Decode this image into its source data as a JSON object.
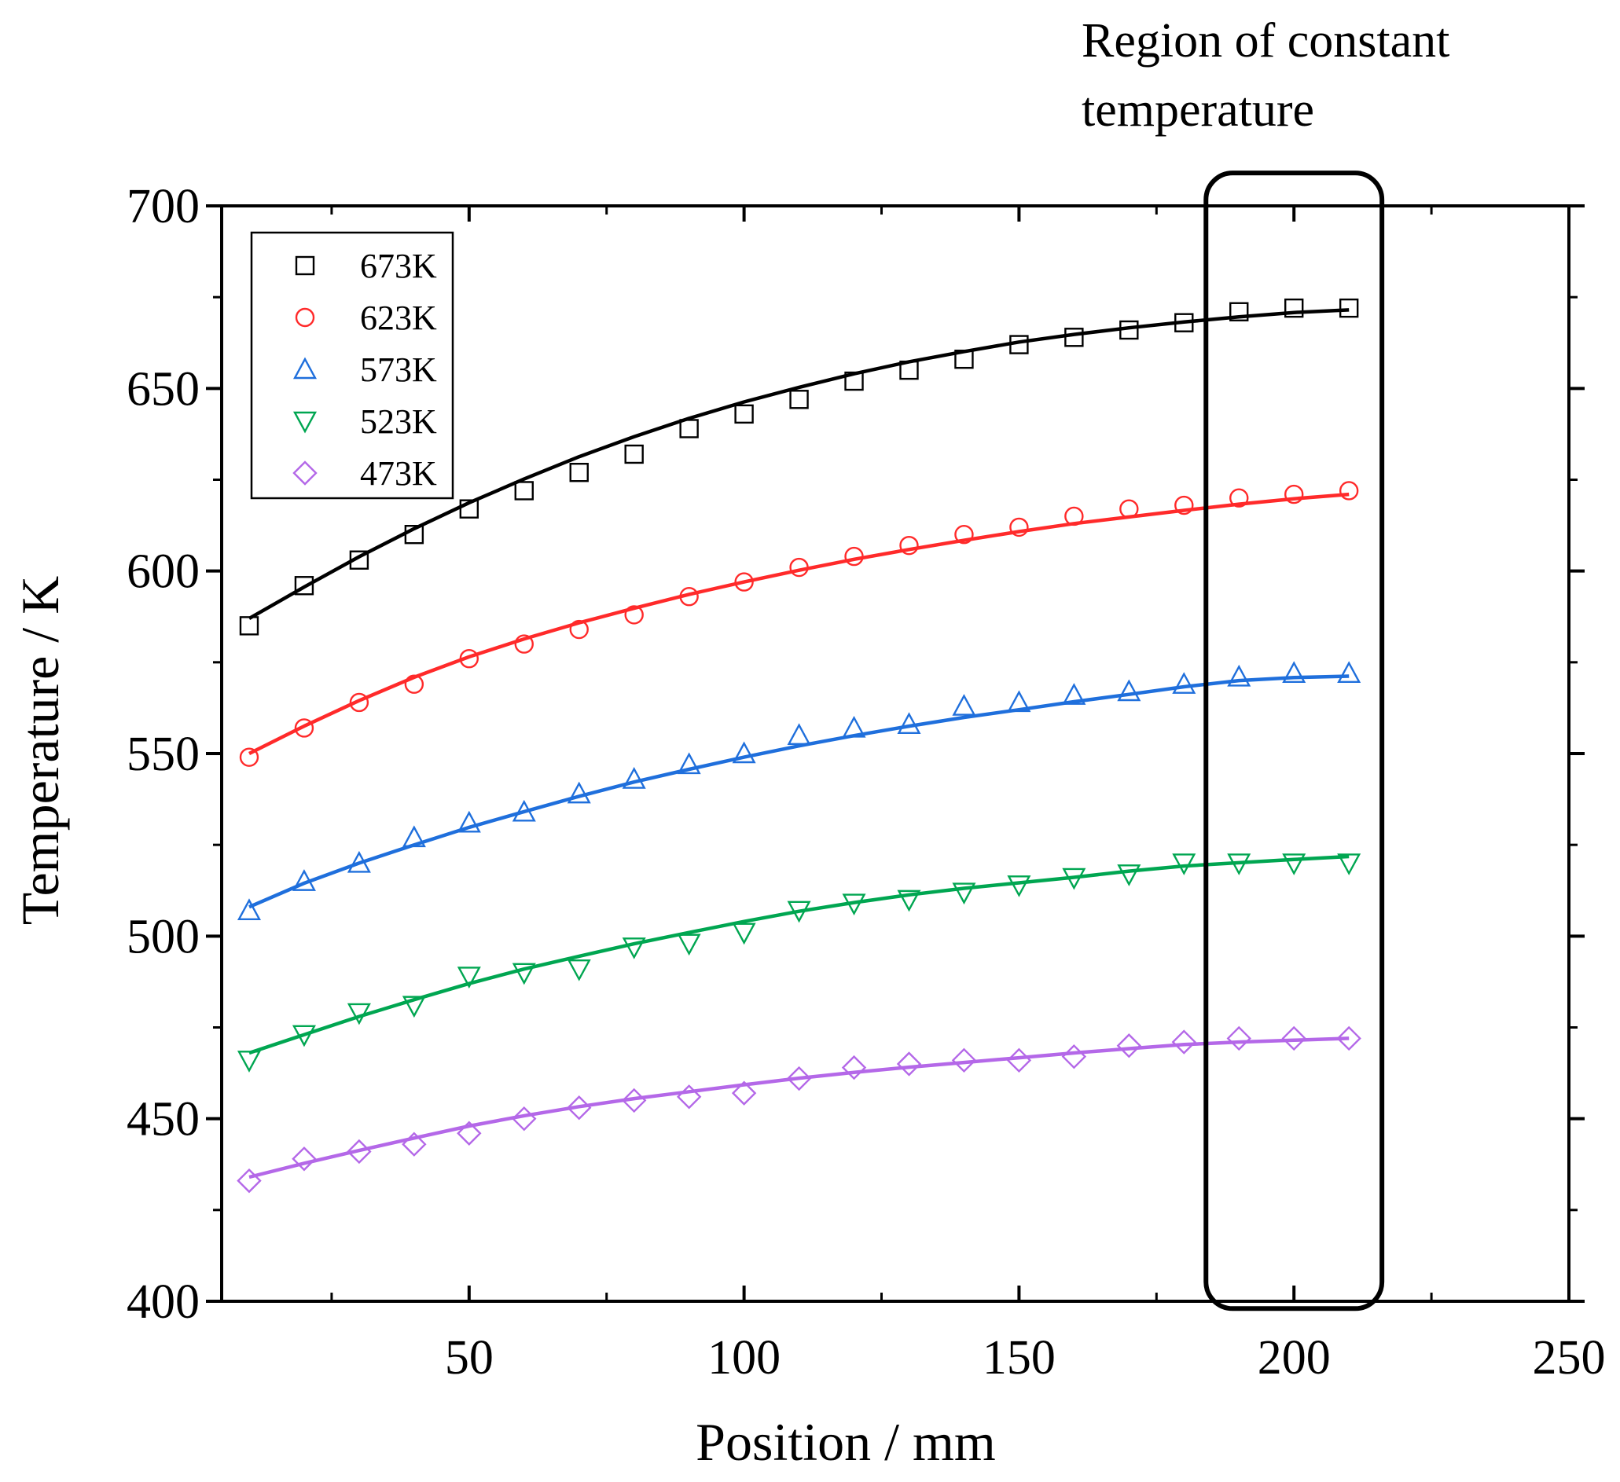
{
  "chart_data": {
    "type": "line",
    "title": "",
    "xlabel": "Position / mm",
    "ylabel": "Temperature / K",
    "xlim": [
      5,
      250
    ],
    "ylim": [
      400,
      700
    ],
    "x_ticks": [
      50,
      100,
      150,
      200,
      250
    ],
    "x_tick_labels": [
      "50",
      "100",
      "150",
      "200",
      "250"
    ],
    "x_minor_ticks": [
      25,
      75,
      125,
      175,
      225
    ],
    "y_ticks": [
      400,
      450,
      500,
      550,
      600,
      650,
      700
    ],
    "y_tick_labels": [
      "400",
      "450",
      "500",
      "550",
      "600",
      "650",
      "700"
    ],
    "y_minor_ticks": [
      425,
      475,
      525,
      575,
      625,
      675
    ],
    "grid": false,
    "legend_position": "top-left",
    "x": [
      10,
      20,
      30,
      40,
      50,
      60,
      70,
      80,
      90,
      100,
      110,
      120,
      130,
      140,
      150,
      160,
      170,
      180,
      190,
      200,
      210
    ],
    "series": [
      {
        "name": "673K",
        "color": "#000000",
        "marker": "square",
        "values": [
          585,
          596,
          603,
          610,
          617,
          622,
          627,
          632,
          639,
          643,
          647,
          652,
          655,
          658,
          662,
          664,
          666,
          668,
          671,
          672,
          672
        ],
        "fit": [
          587,
          595.6,
          603.9,
          611.6,
          618.7,
          625.2,
          631.3,
          636.8,
          641.8,
          646.3,
          650.3,
          654,
          657.3,
          660.1,
          662.7,
          664.8,
          666.6,
          668.2,
          669.6,
          670.8,
          671.5
        ]
      },
      {
        "name": "623K",
        "color": "#ff2a2a",
        "marker": "circle",
        "values": [
          549,
          557,
          564,
          569,
          576,
          580,
          584,
          588,
          593,
          597,
          601,
          604,
          607,
          610,
          612,
          615,
          617,
          618,
          620,
          621,
          622
        ],
        "fit": [
          550,
          557.5,
          564.5,
          570.9,
          576.5,
          581.4,
          585.8,
          589.8,
          593.6,
          597,
          600.2,
          603.2,
          605.9,
          608.4,
          610.8,
          613,
          614.8,
          616.6,
          618.3,
          619.8,
          621
        ]
      },
      {
        "name": "573K",
        "color": "#1f6fdc",
        "marker": "triangle",
        "values": [
          507,
          515,
          520,
          527,
          531,
          534,
          539,
          543,
          547,
          550,
          555,
          557,
          558,
          563,
          564,
          566,
          567,
          569,
          571,
          572,
          572
        ],
        "fit": [
          508,
          514.5,
          520,
          525,
          529.8,
          534.1,
          538.3,
          542.2,
          545.7,
          549,
          552.1,
          554.9,
          557.5,
          559.9,
          562,
          564.2,
          566.2,
          568.3,
          570,
          570.8,
          571.2
        ]
      },
      {
        "name": "523K",
        "color": "#00a651",
        "marker": "triangle-down",
        "values": [
          466,
          473,
          479,
          481,
          489,
          490,
          491,
          497,
          498,
          501,
          507,
          509,
          510,
          512,
          514,
          516,
          517,
          520,
          520,
          520,
          520
        ],
        "fit": [
          468,
          473,
          478,
          482.6,
          487,
          491,
          494.5,
          497.9,
          501,
          504,
          506.8,
          509.2,
          511.3,
          513.1,
          514.6,
          516.1,
          517.8,
          519.2,
          520.1,
          521,
          521.8
        ]
      },
      {
        "name": "473K",
        "color": "#b468e8",
        "marker": "diamond",
        "values": [
          433,
          439,
          441,
          443,
          446,
          450,
          453,
          455,
          456,
          457,
          461,
          464,
          465,
          466,
          466,
          467,
          470,
          471,
          472,
          472,
          472
        ],
        "fit": [
          434,
          437.8,
          441.3,
          444.7,
          448,
          450.8,
          453.3,
          455.5,
          457.4,
          459.3,
          461.1,
          462.7,
          464.1,
          465.4,
          466.7,
          468,
          469.2,
          470.3,
          471,
          471.5,
          472
        ]
      }
    ],
    "annotations": [
      {
        "text_lines": [
          "Region of constant",
          "temperature"
        ],
        "box_x_range": [
          184,
          216
        ],
        "box_y_range": [
          398,
          709
        ]
      }
    ]
  }
}
